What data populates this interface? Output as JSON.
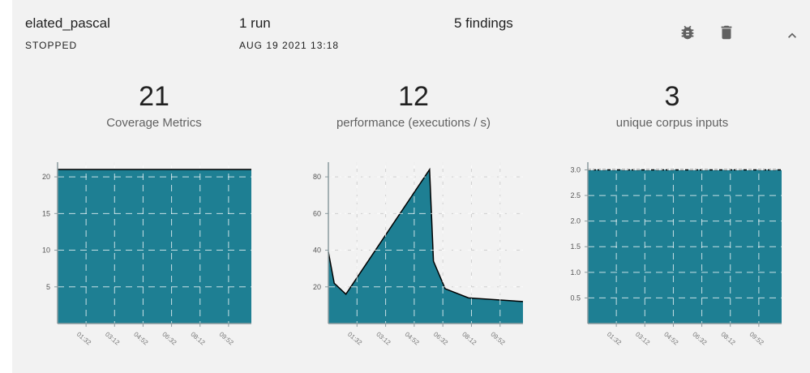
{
  "job": {
    "name": "elated_pascal",
    "status": "STOPPED",
    "runs": "1 run",
    "date": "AUG 19 2021 13:18",
    "findings": "5 findings"
  },
  "icons": {
    "bug": "bug-icon",
    "delete": "trash-icon",
    "collapse": "chevron-up-icon"
  },
  "stats": [
    {
      "value": "21",
      "label": "Coverage Metrics"
    },
    {
      "value": "12",
      "label": "performance (executions / s)"
    },
    {
      "value": "3",
      "label": "unique corpus inputs"
    }
  ],
  "colors": {
    "fill": "#1e7f93",
    "line": "#000000",
    "grid": "#d0d0d0"
  },
  "chart_data": [
    {
      "type": "area",
      "title": "Coverage Metrics",
      "x_ticks": [
        "01:32",
        "03:12",
        "04:52",
        "06:32",
        "08:12",
        "09:52"
      ],
      "y_ticks": [
        5,
        10,
        15,
        20
      ],
      "ylim": [
        0,
        22
      ],
      "x": [
        0,
        1
      ],
      "y": [
        21,
        21
      ],
      "grid": true
    },
    {
      "type": "area",
      "title": "performance (executions / s)",
      "x_ticks": [
        "01:32",
        "03:12",
        "04:52",
        "06:32",
        "08:12",
        "09:52"
      ],
      "y_ticks": [
        20,
        40,
        60,
        80
      ],
      "ylim": [
        0,
        88
      ],
      "x": [
        0,
        0.03,
        0.09,
        0.52,
        0.54,
        0.6,
        0.72,
        1
      ],
      "y": [
        39,
        22,
        16,
        84,
        34,
        19,
        14,
        12
      ],
      "grid": true
    },
    {
      "type": "area",
      "title": "unique corpus inputs",
      "x_ticks": [
        "01:32",
        "03:12",
        "04:52",
        "06:32",
        "08:12",
        "09:52"
      ],
      "y_ticks": [
        0.5,
        1.0,
        1.5,
        2.0,
        2.5,
        3.0
      ],
      "y_tick_labels": [
        "0.5",
        "1.0",
        "1.5",
        "2.0",
        "2.5",
        "3.0"
      ],
      "ylim": [
        0,
        3.15
      ],
      "x": [
        0,
        1
      ],
      "y": [
        3,
        3
      ],
      "grid": true
    }
  ]
}
